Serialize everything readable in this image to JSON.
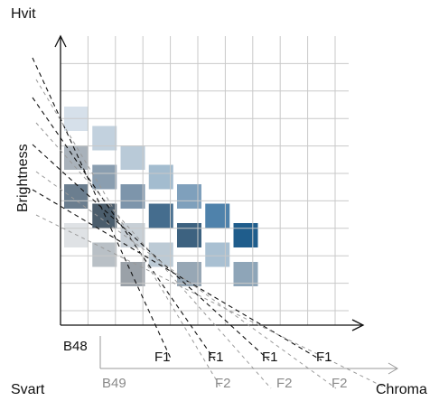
{
  "labels": {
    "top_left": "Hvit",
    "bottom_left": "Svart",
    "y_axis": "Brightness",
    "x_axis": "Chroma",
    "series_b48": "B48",
    "series_b49": "B49",
    "f1": "F1",
    "f2": "F2"
  },
  "colors": {
    "grid": "#c9c9c9",
    "axis": "#111111",
    "dash_black": "#111111",
    "dash_grey": "#9a9a9a",
    "label_grey": "#8a8a8a"
  },
  "swatches": [
    {
      "col": 0,
      "row": 3,
      "color": "#d6e0ea"
    },
    {
      "col": 1,
      "row": 4,
      "color": "#c2d1de"
    },
    {
      "col": 0,
      "row": 5,
      "color": "#a9b2bb"
    },
    {
      "col": 2,
      "row": 5,
      "color": "#b9cad8"
    },
    {
      "col": 1,
      "row": 6,
      "color": "#8a9eb0"
    },
    {
      "col": 3,
      "row": 6,
      "color": "#a3bccf"
    },
    {
      "col": 0,
      "row": 7,
      "color": "#6b7e8f"
    },
    {
      "col": 2,
      "row": 7,
      "color": "#7d95ab"
    },
    {
      "col": 4,
      "row": 7,
      "color": "#7fa0bc"
    },
    {
      "col": 1,
      "row": 8,
      "color": "#4b5d6c"
    },
    {
      "col": 3,
      "row": 8,
      "color": "#456d8e"
    },
    {
      "col": 5,
      "row": 8,
      "color": "#4f82ab"
    },
    {
      "col": 0,
      "row": 9,
      "color": "#dfe2e5"
    },
    {
      "col": 2,
      "row": 9,
      "color": "#c7cfd6"
    },
    {
      "col": 4,
      "row": 9,
      "color": "#3d6280"
    },
    {
      "col": 6,
      "row": 9,
      "color": "#1f5d8c"
    },
    {
      "col": 1,
      "row": 10,
      "color": "#b9c0c6"
    },
    {
      "col": 3,
      "row": 10,
      "color": "#bccad5"
    },
    {
      "col": 5,
      "row": 10,
      "color": "#a9c0d2"
    },
    {
      "col": 2,
      "row": 11,
      "color": "#9aa1a8"
    },
    {
      "col": 4,
      "row": 11,
      "color": "#97a7b5"
    },
    {
      "col": 6,
      "row": 11,
      "color": "#8ea5b8"
    }
  ]
}
